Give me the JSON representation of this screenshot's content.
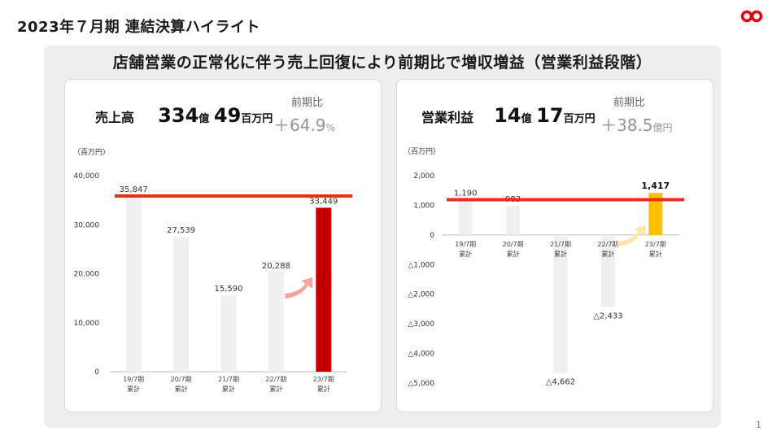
{
  "page": {
    "title": "2023年７月期 連結決算ハイライト",
    "page_number": "1",
    "brand_color": "#e60012"
  },
  "headline": "店舗営業の正常化に伴う売上回復により前期比で増収増益（営業利益段階）",
  "left_card": {
    "label": "売上高",
    "value_1": "334",
    "unit_1": "億",
    "value_2": "49",
    "unit_2": "百万円",
    "yoy_label": "前期比",
    "yoy_value": "＋64.9",
    "yoy_unit": "%"
  },
  "right_card": {
    "label": "営業利益",
    "value_1": "14",
    "unit_1": "億",
    "value_2": "17",
    "unit_2": "百万円",
    "yoy_label": "前期比",
    "yoy_value": "＋38.5",
    "yoy_unit": "億円"
  },
  "chart_data": [
    {
      "type": "bar",
      "unit_label": "（百万円）",
      "categories": [
        "19/7期\n累計",
        "20/7期\n累計",
        "21/7期\n累計",
        "22/7期\n累計",
        "23/7期\n累計"
      ],
      "values": [
        35847,
        27539,
        15590,
        20288,
        33449
      ],
      "data_labels": [
        "35,847",
        "27,539",
        "15,590",
        "20,288",
        "33,449"
      ],
      "ylim": [
        0,
        40000
      ],
      "yticks": [
        0,
        10000,
        20000,
        30000,
        40000
      ],
      "ytick_labels": [
        "0",
        "10,000",
        "20,000",
        "30,000",
        "40,000"
      ],
      "reference_line": 35847,
      "highlight_index": 4,
      "colors": {
        "bar": "#f0f0f0",
        "highlight": "#c00000",
        "line": "#ee2a1b",
        "arrow": "#f4a3a3"
      }
    },
    {
      "type": "bar",
      "unit_label": "（百万円）",
      "categories": [
        "19/7期\n累計",
        "20/7期\n累計",
        "21/7期\n累計",
        "22/7期\n累計",
        "23/7期\n累計"
      ],
      "values": [
        1190,
        983,
        -4662,
        -2433,
        1417
      ],
      "data_labels": [
        "1,190",
        "983",
        "△4,662",
        "△2,433",
        "1,417"
      ],
      "ylim": [
        -5000,
        2000
      ],
      "yticks": [
        2000,
        1000,
        0,
        -1000,
        -2000,
        -3000,
        -4000,
        -5000
      ],
      "ytick_labels": [
        "2,000",
        "1,000",
        "0",
        "△1,000",
        "△2,000",
        "△3,000",
        "△4,000",
        "△5,000"
      ],
      "reference_line": 1190,
      "highlight_index": 4,
      "colors": {
        "bar": "#f0f0f0",
        "highlight": "#ffc000",
        "line": "#ee2a1b",
        "arrow": "#fde6a8"
      }
    }
  ]
}
